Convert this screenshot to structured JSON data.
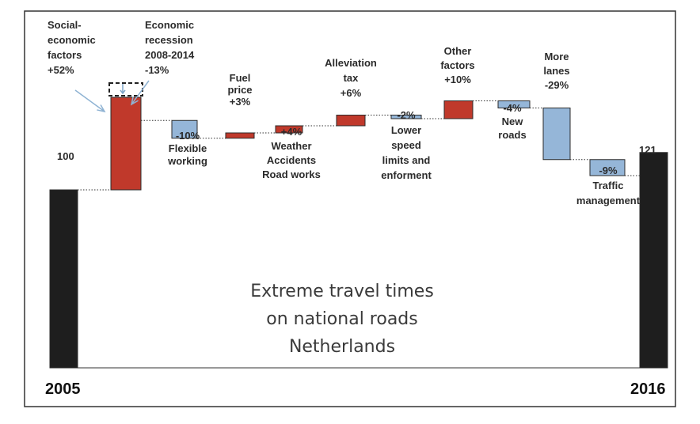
{
  "chart_data": {
    "type": "waterfall",
    "title": [
      "Extreme travel times",
      "on national roads",
      "Netherlands"
    ],
    "start": {
      "category": "2005",
      "value": 100,
      "value_label": "100"
    },
    "end": {
      "category": "2016",
      "value": 121,
      "value_label": "121"
    },
    "steps": [
      {
        "id": "socio",
        "label": [
          "Social-",
          "economic",
          "factors",
          "+52%"
        ],
        "change": 52
      },
      {
        "id": "recession",
        "label": [
          "Economic",
          "recession",
          "2008-2014",
          "-13%"
        ],
        "change": -13,
        "dashed": true
      },
      {
        "id": "flexible",
        "label": [
          "-10%",
          "Flexible",
          "working"
        ],
        "change": -10
      },
      {
        "id": "fuel",
        "label": [
          "Fuel",
          "price",
          "+3%"
        ],
        "change": 3
      },
      {
        "id": "weather",
        "label": [
          "+4%",
          "Weather",
          "Accidents",
          "Road works"
        ],
        "change": 4
      },
      {
        "id": "tax",
        "label": [
          "Alleviation",
          "tax",
          "+6%"
        ],
        "change": 6
      },
      {
        "id": "speed",
        "label": [
          "-2%",
          "Lower",
          "speed",
          "limits and",
          "enforment"
        ],
        "change": -2
      },
      {
        "id": "other",
        "label": [
          "Other",
          "factors",
          "+10%"
        ],
        "change": 10
      },
      {
        "id": "newroads",
        "label": [
          "-4%",
          "New",
          "roads"
        ],
        "change": -4
      },
      {
        "id": "lanes",
        "label": [
          "More",
          "lanes",
          "-29%"
        ],
        "change": -29
      },
      {
        "id": "traffic",
        "label": [
          "-9%",
          "Traffic",
          "management"
        ],
        "change": -9
      }
    ],
    "colors": {
      "total": "#1e1e1e",
      "increase": "#c0392b",
      "decrease": "#95b6d8",
      "outline": "#2b2b2b"
    }
  }
}
